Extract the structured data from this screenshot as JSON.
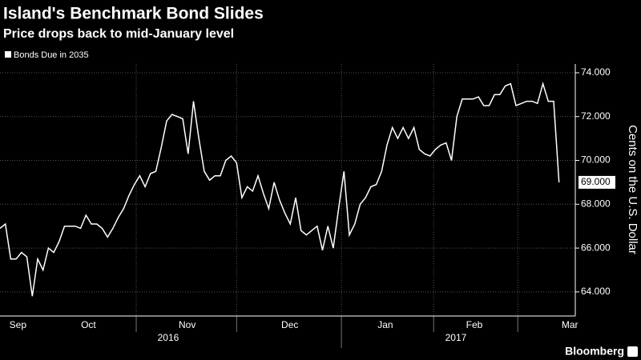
{
  "chart_data": {
    "type": "line",
    "title": "Island's Benchmark Bond Slides",
    "subtitle": "Price drops back to mid-January level",
    "y_axis_label": "Cents on the U.S. Dollar",
    "source": "Bloomberg",
    "series": [
      {
        "name": "Bonds Due in 2035",
        "color": "#ffffff",
        "values": [
          66.9,
          67.1,
          65.5,
          65.5,
          65.8,
          65.6,
          63.8,
          65.5,
          65.0,
          66.0,
          65.8,
          66.3,
          67.0,
          67.0,
          67.0,
          66.9,
          67.5,
          67.1,
          67.1,
          66.9,
          66.5,
          66.9,
          67.4,
          67.8,
          68.4,
          68.9,
          69.3,
          68.8,
          69.4,
          69.5,
          70.6,
          71.8,
          72.1,
          72.0,
          71.9,
          70.3,
          72.7,
          71.0,
          69.5,
          69.1,
          69.3,
          69.3,
          70.0,
          70.2,
          69.9,
          68.3,
          68.8,
          68.6,
          69.3,
          68.5,
          67.8,
          69.0,
          68.2,
          67.6,
          67.1,
          68.3,
          66.8,
          66.6,
          66.8,
          67.0,
          65.9,
          67.0,
          66.0,
          67.8,
          69.5,
          66.6,
          67.1,
          68.0,
          68.3,
          68.8,
          68.9,
          69.5,
          70.7,
          71.5,
          71.0,
          71.5,
          71.0,
          71.5,
          70.5,
          70.3,
          70.2,
          70.5,
          70.7,
          70.8,
          70.0,
          72.0,
          72.8,
          72.8,
          72.8,
          72.9,
          72.5,
          72.5,
          73.0,
          73.0,
          73.4,
          73.5,
          72.5,
          72.6,
          72.7,
          72.7,
          72.6,
          73.5,
          72.7,
          72.7,
          69.0
        ],
        "value_labels": [
          null,
          null,
          null,
          null,
          null,
          null,
          null,
          null,
          null,
          null,
          null,
          null,
          null,
          null,
          null,
          null,
          null,
          null,
          null,
          null,
          null,
          null,
          null,
          null,
          null,
          null,
          null,
          null,
          null,
          null,
          null,
          null,
          null,
          null,
          null,
          null,
          null,
          null,
          null,
          null,
          null,
          null,
          null,
          null,
          null,
          null,
          null,
          null,
          null,
          null,
          null,
          null,
          null,
          null,
          null,
          null,
          null,
          null,
          null,
          null,
          null,
          null,
          null,
          null,
          null,
          null,
          null,
          null,
          null,
          null,
          null,
          null,
          null,
          null,
          null,
          null,
          null,
          null,
          null,
          null,
          null,
          null,
          null,
          null,
          null,
          null,
          null,
          null,
          null,
          null,
          null,
          null,
          null,
          null,
          null,
          null,
          null,
          null,
          null,
          null,
          null,
          null,
          null,
          null,
          "69.000"
        ]
      }
    ],
    "xlim": [
      0,
      106
    ],
    "xticks": [
      {
        "value": 3.3,
        "label": "Sep"
      },
      {
        "value": 16.3,
        "label": "Oct"
      },
      {
        "value": 34.5,
        "label": "Nov"
      },
      {
        "value": 53.4,
        "label": "Dec"
      },
      {
        "value": 71.0,
        "label": "Jan"
      },
      {
        "value": 87.4,
        "label": "Feb"
      },
      {
        "value": 105.0,
        "label": "Mar"
      }
    ],
    "xgrid": [
      25.1,
      43.6,
      62.9,
      79.9,
      95.4
    ],
    "years": [
      {
        "value": 31,
        "label": "2016"
      },
      {
        "value": 84,
        "label": "2017"
      }
    ],
    "year_divider": 62.9,
    "ylim": [
      62.9,
      74.4
    ],
    "yticks": [
      {
        "value": 64,
        "label": "64.000"
      },
      {
        "value": 66,
        "label": "66.000"
      },
      {
        "value": 68,
        "label": "68.000"
      },
      {
        "value": 70,
        "label": "70.000"
      },
      {
        "value": 72,
        "label": "72.000"
      },
      {
        "value": 74,
        "label": "74.000"
      }
    ],
    "grid": true
  }
}
